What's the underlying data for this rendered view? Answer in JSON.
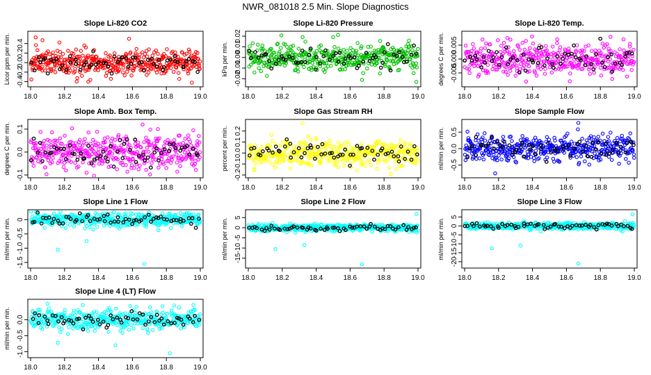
{
  "title": "NWR_081018  2.5 Min. Slope Diagnostics",
  "colors": {
    "highlight": "#000000"
  },
  "chart_data": [
    {
      "type": "scatter",
      "title": "Slope Li-820 CO2",
      "xlabel": "",
      "ylabel": "Licor ppm per min.",
      "xlim": [
        18.0,
        19.0
      ],
      "ylim": [
        -0.45,
        0.6
      ],
      "xticks": [
        18.0,
        18.2,
        18.4,
        18.6,
        18.8,
        19.0
      ],
      "xtick_labels": [
        "18.0",
        "18.2",
        "18.4",
        "18.6",
        "18.8",
        "19.0"
      ],
      "yticks": [
        -0.4,
        -0.2,
        0.0,
        0.2,
        0.4
      ],
      "ytick_labels": [
        "-0.4",
        "-0.2",
        "0.0",
        "0.2",
        "0.4"
      ],
      "color": "#ff0000",
      "count": 420,
      "spread": 0.14,
      "outliers": [
        [
          18.03,
          0.53
        ],
        [
          18.07,
          0.47
        ],
        [
          18.34,
          -0.4
        ],
        [
          18.95,
          -0.42
        ],
        [
          18.58,
          0.5
        ]
      ]
    },
    {
      "type": "scatter",
      "title": "Slope Li-820 Pressure",
      "xlabel": "",
      "ylabel": "kPa per min.",
      "xlim": [
        18.0,
        19.0
      ],
      "ylim": [
        -0.025,
        0.022
      ],
      "xticks": [
        18.0,
        18.2,
        18.4,
        18.6,
        18.8,
        19.0
      ],
      "xtick_labels": [
        "18.0",
        "18.2",
        "18.4",
        "18.6",
        "18.8",
        "19.0"
      ],
      "yticks": [
        -0.02,
        -0.01,
        0.0,
        0.01,
        0.02
      ],
      "ytick_labels": [
        "-0.02",
        "-0.01",
        "0.00",
        "0.01",
        "0.02"
      ],
      "color": "#00c000",
      "count": 420,
      "spread": 0.0065,
      "outliers": [
        [
          18.32,
          0.019
        ],
        [
          18.67,
          -0.021
        ],
        [
          18.99,
          -0.023
        ],
        [
          18.5,
          0.019
        ]
      ]
    },
    {
      "type": "scatter",
      "title": "Slope Li-820 Temp.",
      "xlabel": "",
      "ylabel": "degrees C per min.",
      "xlim": [
        18.0,
        19.0
      ],
      "ylim": [
        -0.009,
        0.009
      ],
      "xticks": [
        18.0,
        18.2,
        18.4,
        18.6,
        18.8,
        19.0
      ],
      "xtick_labels": [
        "18.0",
        "18.2",
        "18.4",
        "18.6",
        "18.8",
        "19.0"
      ],
      "yticks": [
        -0.005,
        0.0,
        0.005
      ],
      "ytick_labels": [
        "-0.005",
        "0.000",
        "0.005"
      ],
      "color": "#ff00ff",
      "count": 420,
      "spread": 0.0028,
      "outliers": [
        [
          18.27,
          0.007
        ],
        [
          18.62,
          -0.008
        ],
        [
          18.86,
          0.008
        ]
      ]
    },
    {
      "type": "scatter",
      "title": "Slope Amb. Box Temp.",
      "xlabel": "",
      "ylabel": "degrees C per min.",
      "xlim": [
        18.0,
        19.0
      ],
      "ylim": [
        -0.1,
        0.13
      ],
      "xticks": [
        18.0,
        18.2,
        18.4,
        18.6,
        18.8,
        19.0
      ],
      "xtick_labels": [
        "18.0",
        "18.2",
        "18.4",
        "18.6",
        "18.8",
        "19.0"
      ],
      "yticks": [
        -0.1,
        0.0,
        0.1
      ],
      "ytick_labels": [
        "-0.1",
        "0.0",
        "0.1"
      ],
      "color": "#ff00ff",
      "count": 420,
      "spread": 0.038,
      "outliers": [
        [
          18.66,
          0.12
        ],
        [
          18.33,
          -0.09
        ],
        [
          18.75,
          0.1
        ]
      ]
    },
    {
      "type": "scatter",
      "title": "Slope Gas Stream RH",
      "xlabel": "",
      "ylabel": "percent per min.",
      "xlim": [
        18.0,
        19.0
      ],
      "ylim": [
        -0.2,
        0.28
      ],
      "xticks": [
        18.0,
        18.2,
        18.4,
        18.6,
        18.8,
        19.0
      ],
      "xtick_labels": [
        "18.0",
        "18.2",
        "18.4",
        "18.6",
        "18.8",
        "19.0"
      ],
      "yticks": [
        -0.2,
        -0.1,
        0.0,
        0.1,
        0.2
      ],
      "ytick_labels": [
        "-0.2",
        "-0.1",
        "0.0",
        "0.1",
        "0.2"
      ],
      "color": "#ffff00",
      "count": 420,
      "spread": 0.06,
      "outliers": [
        [
          18.32,
          0.27
        ],
        [
          18.84,
          -0.19
        ]
      ]
    },
    {
      "type": "scatter",
      "title": "Slope Sample Flow",
      "xlabel": "",
      "ylabel": "ml/min per min.",
      "xlim": [
        18.0,
        19.0
      ],
      "ylim": [
        -0.8,
        0.8
      ],
      "xticks": [
        18.0,
        18.2,
        18.4,
        18.6,
        18.8,
        19.0
      ],
      "xtick_labels": [
        "18.0",
        "18.2",
        "18.4",
        "18.6",
        "18.8",
        "19.0"
      ],
      "yticks": [
        -0.5,
        0.0,
        0.5
      ],
      "ytick_labels": [
        "-0.5",
        "0.0",
        "0.5"
      ],
      "color": "#0000ff",
      "count": 420,
      "spread": 0.2,
      "outliers": [
        [
          18.67,
          0.78
        ],
        [
          18.18,
          -0.75
        ]
      ]
    },
    {
      "type": "scatter",
      "title": "Slope Line 1 Flow",
      "xlabel": "",
      "ylabel": "ml/min per min.",
      "xlim": [
        18.0,
        19.0
      ],
      "ylim": [
        -1.6,
        0.25
      ],
      "xticks": [
        18.0,
        18.2,
        18.4,
        18.6,
        18.8,
        19.0
      ],
      "xtick_labels": [
        "18.0",
        "18.2",
        "18.4",
        "18.6",
        "18.8",
        "19.0"
      ],
      "yticks": [
        -1.5,
        -1.0,
        -0.5,
        0.0
      ],
      "ytick_labels": [
        "-1.5",
        "-1.0",
        "-0.5",
        "0"
      ],
      "color": "#00ffff",
      "count": 420,
      "spread": 0.12,
      "outliers": [
        [
          18.16,
          -1.05
        ],
        [
          18.33,
          -0.75
        ],
        [
          18.67,
          -1.55
        ],
        [
          18.99,
          0.18
        ]
      ]
    },
    {
      "type": "scatter",
      "title": "Slope Line 2 Flow",
      "xlabel": "",
      "ylabel": "ml/min per min.",
      "xlim": [
        18.0,
        19.0
      ],
      "ylim": [
        -18.5,
        7.5
      ],
      "xticks": [
        18.0,
        18.2,
        18.4,
        18.6,
        18.8,
        19.0
      ],
      "xtick_labels": [
        "18.0",
        "18.2",
        "18.4",
        "18.6",
        "18.8",
        "19.0"
      ],
      "yticks": [
        -15,
        -10,
        -5,
        0,
        5
      ],
      "ytick_labels": [
        "-15",
        "-10",
        "-5",
        "0",
        "5"
      ],
      "color": "#00ffff",
      "count": 420,
      "spread": 0.9,
      "outliers": [
        [
          18.16,
          -10.5
        ],
        [
          18.33,
          -8.5
        ],
        [
          18.67,
          -18
        ],
        [
          18.99,
          6.8
        ]
      ]
    },
    {
      "type": "scatter",
      "title": "Slope Line 3 Flow",
      "xlabel": "",
      "ylabel": "ml/min per min.",
      "xlim": [
        18.0,
        19.0
      ],
      "ylim": [
        -22,
        7.5
      ],
      "xticks": [
        18.0,
        18.2,
        18.4,
        18.6,
        18.8,
        19.0
      ],
      "xtick_labels": [
        "18.0",
        "18.2",
        "18.4",
        "18.6",
        "18.8",
        "19.0"
      ],
      "yticks": [
        -20,
        -15,
        -10,
        -5,
        0,
        5
      ],
      "ytick_labels": [
        "-20",
        "-15",
        "-10",
        "-5",
        "0",
        "5"
      ],
      "color": "#00ffff",
      "count": 420,
      "spread": 1.0,
      "outliers": [
        [
          18.16,
          -12.5
        ],
        [
          18.33,
          -11
        ],
        [
          18.67,
          -21
        ],
        [
          18.99,
          6.5
        ]
      ]
    },
    {
      "type": "scatter",
      "title": "Slope Line 4 (LT) Flow",
      "xlabel": "",
      "ylabel": "ml/min per min.",
      "xlim": [
        18.0,
        19.0
      ],
      "ylim": [
        -1.1,
        0.55
      ],
      "xticks": [
        18.0,
        18.2,
        18.4,
        18.6,
        18.8,
        19.0
      ],
      "xtick_labels": [
        "18.0",
        "18.2",
        "18.4",
        "18.6",
        "18.8",
        "19.0"
      ],
      "yticks": [
        -1.0,
        -0.5,
        0.0
      ],
      "ytick_labels": [
        "-1.0",
        "-0.5",
        "0.0"
      ],
      "color": "#00ffff",
      "count": 420,
      "spread": 0.16,
      "outliers": [
        [
          18.16,
          -0.72
        ],
        [
          18.5,
          -0.8
        ],
        [
          18.82,
          -1.05
        ],
        [
          18.1,
          0.5
        ]
      ]
    }
  ]
}
